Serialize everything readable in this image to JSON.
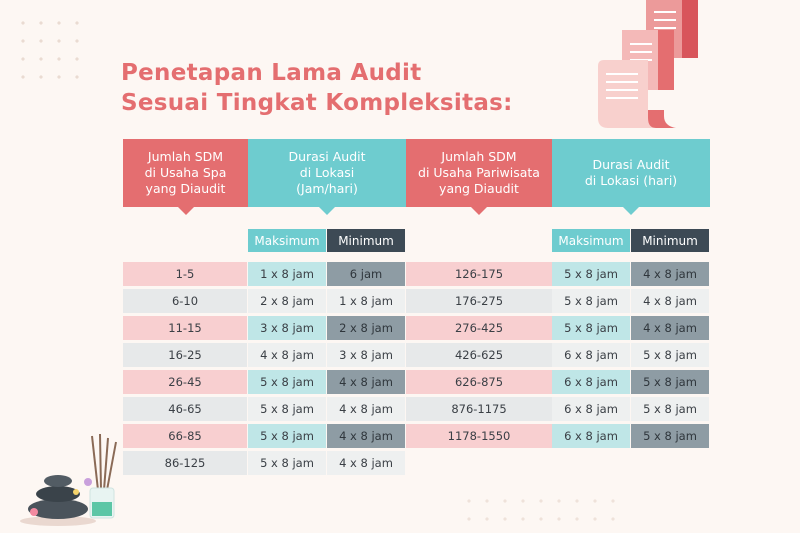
{
  "title": {
    "line1": "Penetapan Lama Audit",
    "line2": "Sesuai Tingkat Kompleksitas:"
  },
  "headers": {
    "spa_sdm": [
      "Jumlah SDM",
      "di Usaha Spa",
      "yang Diaudit"
    ],
    "spa_durasi": [
      "Durasi Audit",
      "di Lokasi",
      "(Jam/hari)"
    ],
    "pariwisata_sdm": [
      "Jumlah SDM",
      "di Usaha Pariwisata",
      "yang Diaudit"
    ],
    "pariwisata_durasi": [
      "Durasi Audit",
      "di Lokasi (hari)"
    ]
  },
  "subheaders": {
    "maksimum": "Maksimum",
    "minimum": "Minimum"
  },
  "spa_rows": [
    {
      "sdm": "1-5",
      "max": "1 x 8 jam",
      "min": "6 jam"
    },
    {
      "sdm": "6-10",
      "max": "2 x 8 jam",
      "min": "1 x 8 jam"
    },
    {
      "sdm": "11-15",
      "max": "3 x 8 jam",
      "min": "2 x 8 jam"
    },
    {
      "sdm": "16-25",
      "max": "4 x 8 jam",
      "min": "3 x 8 jam"
    },
    {
      "sdm": "26-45",
      "max": "5 x 8 jam",
      "min": "4 x 8 jam"
    },
    {
      "sdm": "46-65",
      "max": "5 x 8 jam",
      "min": "4 x 8 jam"
    },
    {
      "sdm": "66-85",
      "max": "5 x 8 jam",
      "min": "4 x 8 jam"
    },
    {
      "sdm": "86-125",
      "max": "5 x 8 jam",
      "min": "4 x 8 jam"
    }
  ],
  "pariwisata_rows": [
    {
      "sdm": "126-175",
      "max": "5 x 8 jam",
      "min": "4 x 8 jam"
    },
    {
      "sdm": "176-275",
      "max": "5 x 8 jam",
      "min": "4 x 8 jam"
    },
    {
      "sdm": "276-425",
      "max": "5 x 8 jam",
      "min": "4 x 8 jam"
    },
    {
      "sdm": "426-625",
      "max": "6 x 8 jam",
      "min": "5 x 8 jam"
    },
    {
      "sdm": "626-875",
      "max": "6 x 8 jam",
      "min": "5 x 8 jam"
    },
    {
      "sdm": "876-1175",
      "max": "6 x 8 jam",
      "min": "5 x 8 jam"
    },
    {
      "sdm": "1178-1550",
      "max": "6 x 8 jam",
      "min": "5 x 8 jam"
    }
  ],
  "colors": {
    "accent_red": "#e46e70",
    "accent_teal": "#6ecccf",
    "dark_slate": "#3d4a55",
    "background": "#fdf7f3"
  },
  "icons": [
    "documents-stack-icon",
    "spa-stones-icon",
    "reed-diffuser-icon"
  ]
}
